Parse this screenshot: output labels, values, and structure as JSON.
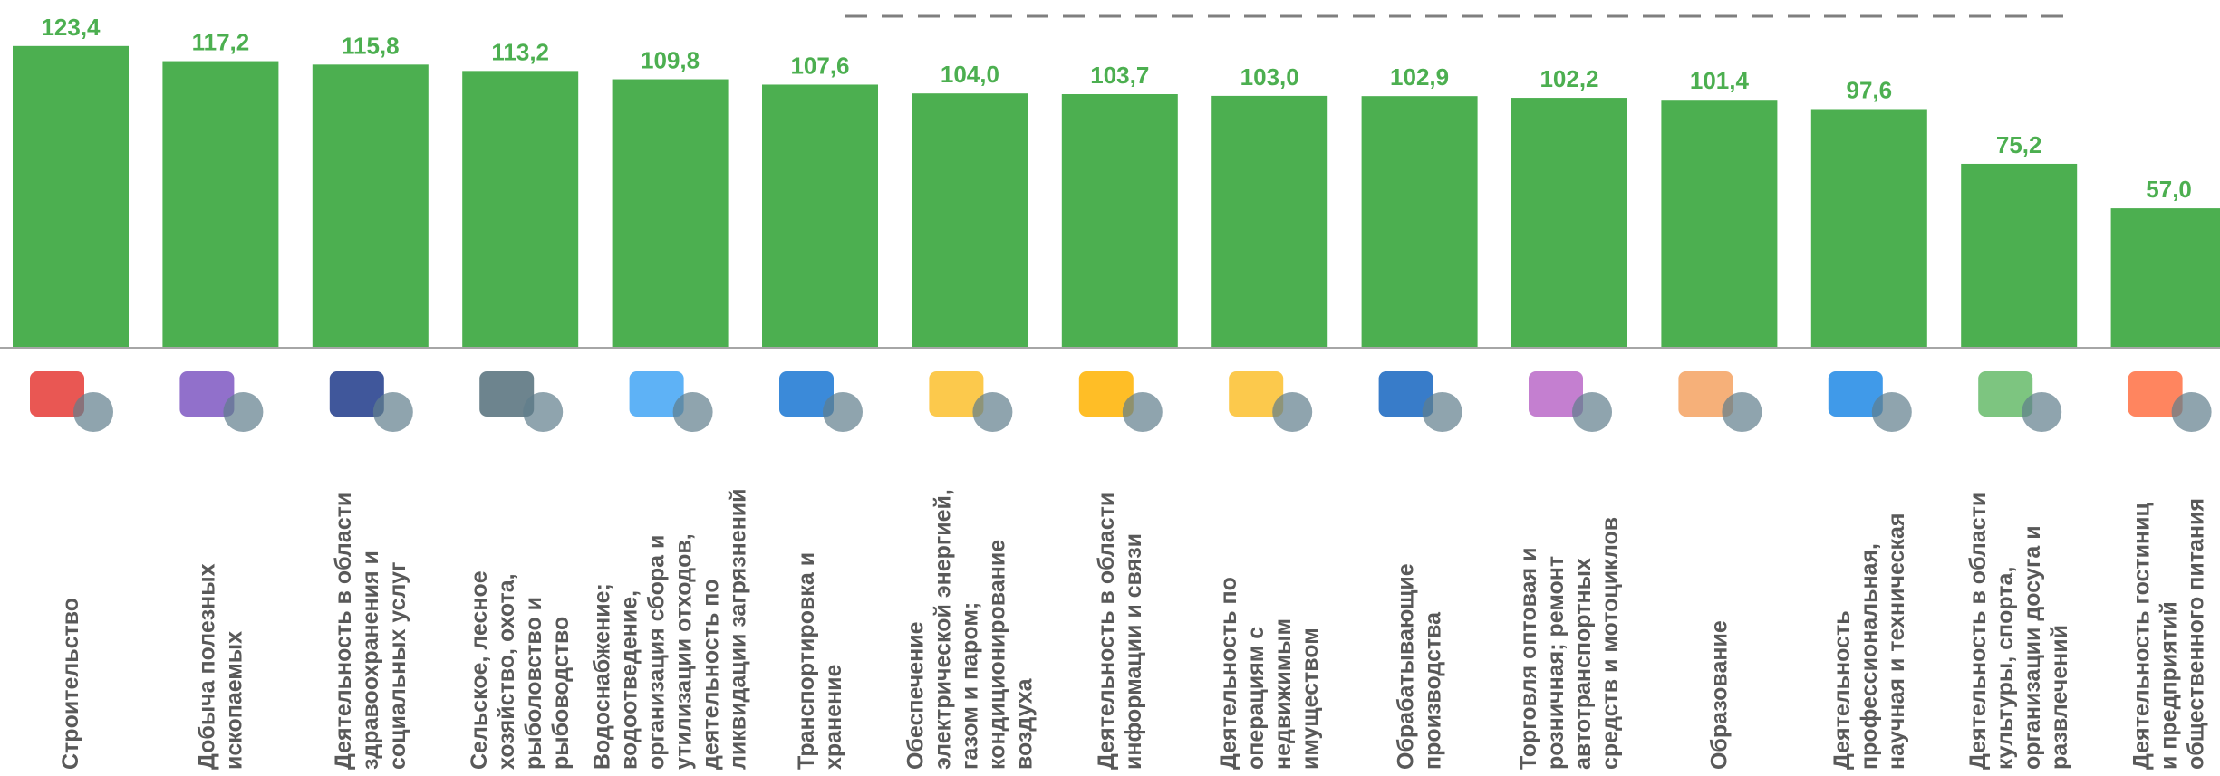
{
  "chart_data": {
    "type": "bar",
    "categories": [
      [
        "Строительство"
      ],
      [
        "Добыча полезных",
        "ископаемых"
      ],
      [
        "Деятельность в области",
        "здравоохранения и",
        "социальных услуг"
      ],
      [
        "Сельское, лесное",
        "хозяйство, охота,",
        "рыболовство и",
        "рыбоводство"
      ],
      [
        "Водоснабжение;",
        "водоотведение,",
        "организация сбора и",
        "утилизации отходов,",
        "деятельность по",
        "ликвидации загрязнений"
      ],
      [
        "Транспортировка и",
        "хранение"
      ],
      [
        "Обеспечение",
        "электрической энергией,",
        "газом  и паром;",
        "кондиционирование",
        "воздуха"
      ],
      [
        "Деятельность в области",
        "информации и связи"
      ],
      [
        "Деятельность по",
        "операциям с",
        "недвижимым",
        "имуществом"
      ],
      [
        "Обрабатывающие",
        "производства"
      ],
      [
        "Торговля оптовая и",
        "розничная; ремонт",
        "автотранспортных",
        "средств и мотоциклов"
      ],
      [
        "Образование"
      ],
      [
        "Деятельность",
        "профессиональная,",
        "научная и техническая"
      ],
      [
        "Деятельность в области",
        "культуры, спорта,",
        "организации досуга и",
        "развлечений"
      ],
      [
        "Деятельность гостиниц",
        "и предприятий",
        "общественного питания"
      ]
    ],
    "values": [
      123.4,
      117.2,
      115.8,
      113.2,
      109.8,
      107.6,
      104.0,
      103.7,
      103.0,
      102.9,
      102.2,
      101.4,
      97.6,
      75.2,
      57.0
    ],
    "value_labels": [
      "123,4",
      "117,2",
      "115,8",
      "113,2",
      "109,8",
      "107,6",
      "104,0",
      "103,7",
      "103,0",
      "102,9",
      "102,2",
      "101,4",
      "97,6",
      "75,2",
      "57,0"
    ],
    "color": "#4caf50",
    "ylim": [
      0,
      140
    ]
  }
}
